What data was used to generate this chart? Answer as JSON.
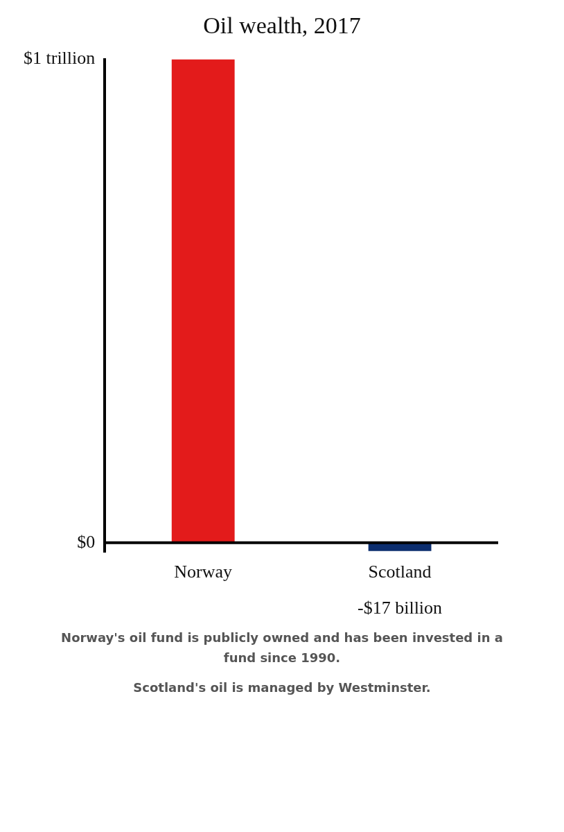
{
  "chart_data": {
    "type": "bar",
    "title": "Oil wealth, 2017",
    "categories": [
      "Norway",
      "Scotland"
    ],
    "values": [
      1,
      -0.017
    ],
    "colors": [
      "#e31b1b",
      "#0b2d6e"
    ],
    "ylim": [
      -0.02,
      1
    ],
    "yticks": [
      {
        "value": 0,
        "label": "$0"
      },
      {
        "value": 1,
        "label": "$1 trillion"
      }
    ],
    "grid": false,
    "annotations": [
      {
        "text": "-$17 billion",
        "x": "Scotland",
        "y": -0.017
      },
      "Norway's oil fund is publicly owned and has been invested in a fund since 1990.",
      "Scotland's oil is managed by Westminster."
    ]
  }
}
